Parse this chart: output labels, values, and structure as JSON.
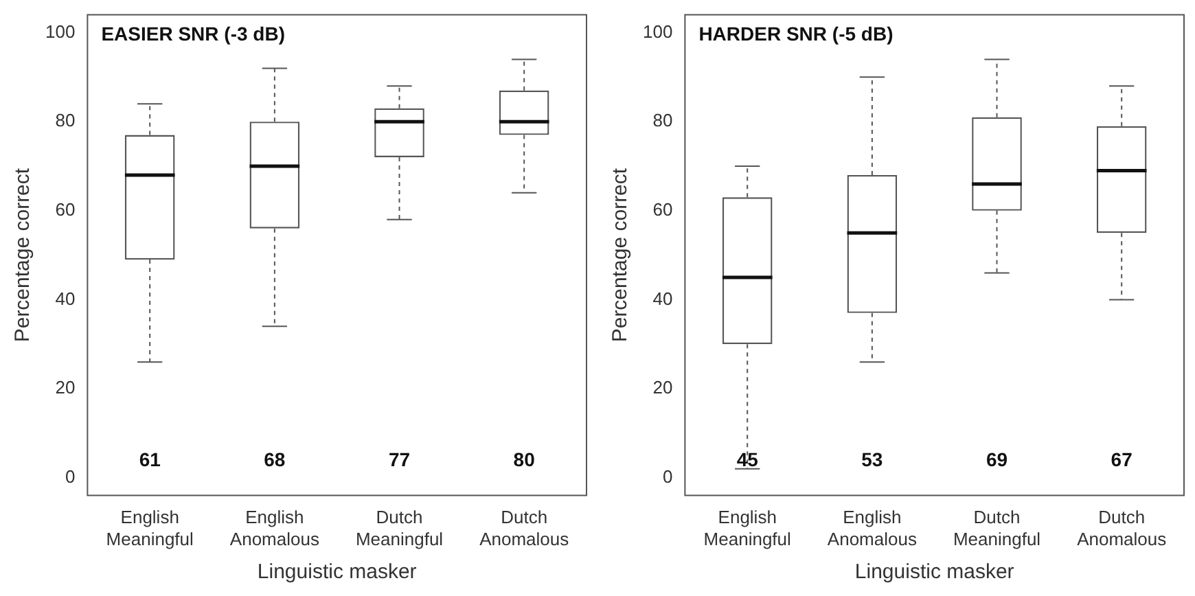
{
  "chart_data": [
    {
      "type": "box",
      "title": "EASIER SNR (-3 dB)",
      "xlabel": "Linguistic masker",
      "ylabel": "Percentage correct",
      "categories": [
        "English Meaningful",
        "English Anomalous",
        "Dutch Meaningful",
        "Dutch Anomalous"
      ],
      "ylim": [
        -4,
        104
      ],
      "yticks": [
        0,
        20,
        40,
        60,
        80,
        100
      ],
      "grid": false,
      "legend": false,
      "boxes": [
        {
          "low": 26,
          "q1": 49,
          "median": 68,
          "q3": 77,
          "high": 84
        },
        {
          "low": 34,
          "q1": 56,
          "median": 70,
          "q3": 80,
          "high": 92
        },
        {
          "low": 58,
          "q1": 72,
          "median": 80,
          "q3": 83,
          "high": 88
        },
        {
          "low": 64,
          "q1": 77,
          "median": 80,
          "q3": 87,
          "high": 94
        }
      ],
      "annotations": [
        "61",
        "68",
        "77",
        "80"
      ]
    },
    {
      "type": "box",
      "title": "HARDER SNR (-5 dB)",
      "xlabel": "Linguistic masker",
      "ylabel": "Percentage correct",
      "categories": [
        "English Meaningful",
        "English Anomalous",
        "Dutch Meaningful",
        "Dutch Anomalous"
      ],
      "ylim": [
        -4,
        104
      ],
      "yticks": [
        0,
        20,
        40,
        60,
        80,
        100
      ],
      "grid": false,
      "legend": false,
      "boxes": [
        {
          "low": 2,
          "q1": 30,
          "median": 45,
          "q3": 63,
          "high": 70
        },
        {
          "low": 26,
          "q1": 37,
          "median": 55,
          "q3": 68,
          "high": 90
        },
        {
          "low": 46,
          "q1": 60,
          "median": 66,
          "q3": 81,
          "high": 94
        },
        {
          "low": 40,
          "q1": 55,
          "median": 69,
          "q3": 79,
          "high": 88
        }
      ],
      "annotations": [
        "45",
        "53",
        "69",
        "67"
      ]
    }
  ]
}
